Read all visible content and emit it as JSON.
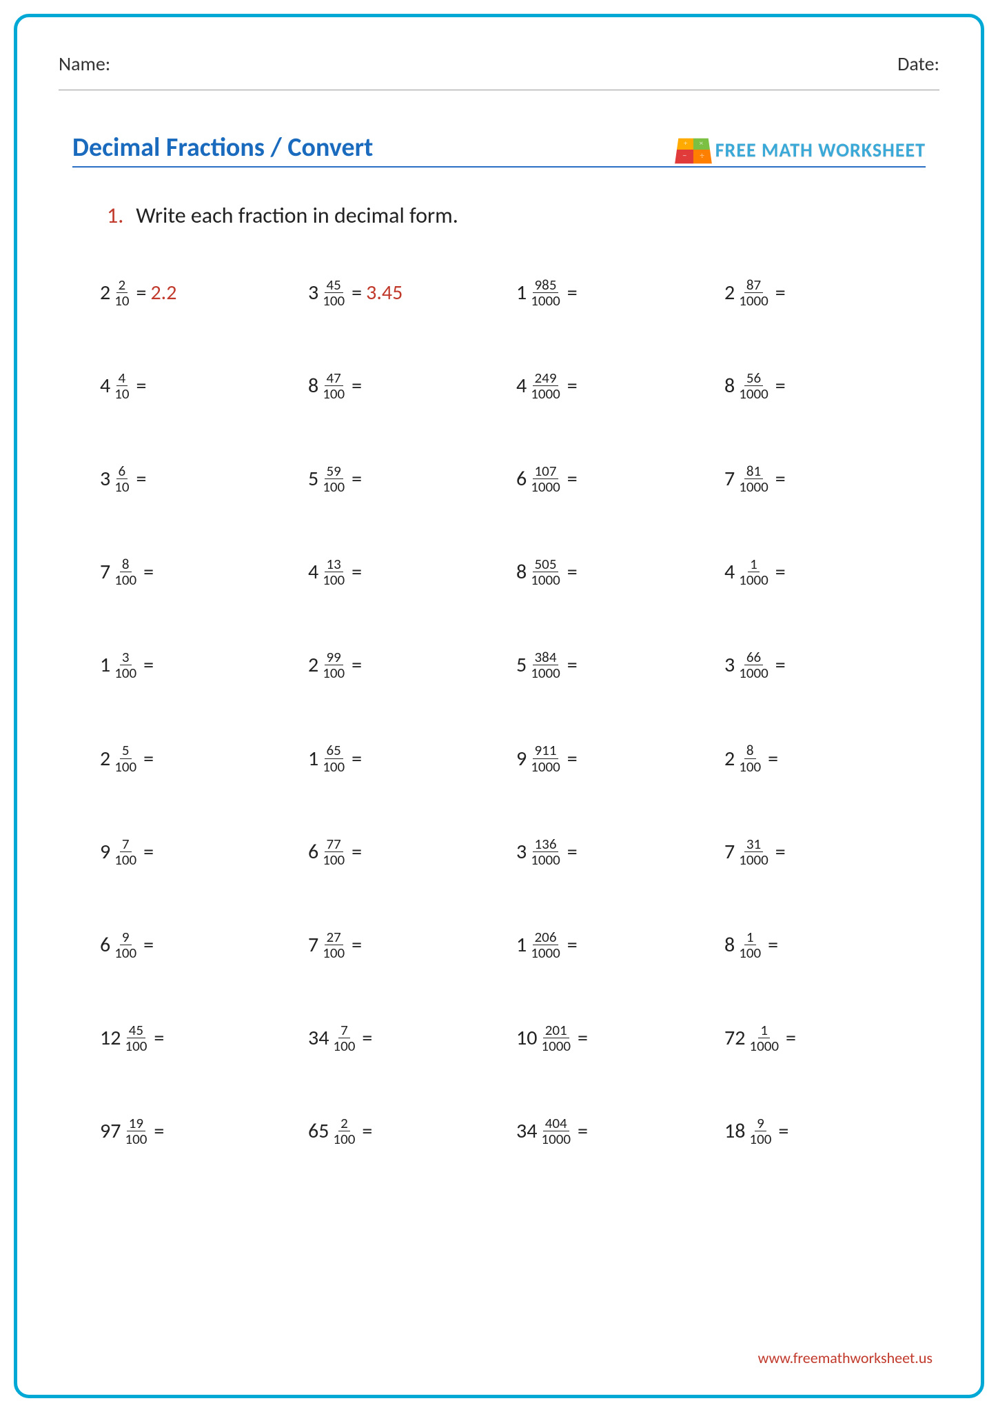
{
  "header": {
    "name_label": "Name:",
    "date_label": "Date:"
  },
  "title": "Decimal Fractions / Convert",
  "brand_text": "FREE MATH WORKSHEET",
  "instruction_number": "1.",
  "instruction_text": "Write each fraction in decimal form.",
  "footer_url": "www.freemathworksheet.us",
  "answer_color": "#c0392b",
  "title_color": "#1a6bbd",
  "border_color": "#00a8d6",
  "problems": [
    {
      "whole": "2",
      "num": "2",
      "den": "10",
      "answer": "2.2"
    },
    {
      "whole": "3",
      "num": "45",
      "den": "100",
      "answer": "3.45"
    },
    {
      "whole": "1",
      "num": "985",
      "den": "1000",
      "answer": ""
    },
    {
      "whole": "2",
      "num": "87",
      "den": "1000",
      "answer": ""
    },
    {
      "whole": "4",
      "num": "4",
      "den": "10",
      "answer": ""
    },
    {
      "whole": "8",
      "num": "47",
      "den": "100",
      "answer": ""
    },
    {
      "whole": "4",
      "num": "249",
      "den": "1000",
      "answer": ""
    },
    {
      "whole": "8",
      "num": "56",
      "den": "1000",
      "answer": ""
    },
    {
      "whole": "3",
      "num": "6",
      "den": "10",
      "answer": ""
    },
    {
      "whole": "5",
      "num": "59",
      "den": "100",
      "answer": ""
    },
    {
      "whole": "6",
      "num": "107",
      "den": "1000",
      "answer": ""
    },
    {
      "whole": "7",
      "num": "81",
      "den": "1000",
      "answer": ""
    },
    {
      "whole": "7",
      "num": "8",
      "den": "100",
      "answer": ""
    },
    {
      "whole": "4",
      "num": "13",
      "den": "100",
      "answer": ""
    },
    {
      "whole": "8",
      "num": "505",
      "den": "1000",
      "answer": ""
    },
    {
      "whole": "4",
      "num": "1",
      "den": "1000",
      "answer": ""
    },
    {
      "whole": "1",
      "num": "3",
      "den": "100",
      "answer": ""
    },
    {
      "whole": "2",
      "num": "99",
      "den": "100",
      "answer": ""
    },
    {
      "whole": "5",
      "num": "384",
      "den": "1000",
      "answer": ""
    },
    {
      "whole": "3",
      "num": "66",
      "den": "1000",
      "answer": ""
    },
    {
      "whole": "2",
      "num": "5",
      "den": "100",
      "answer": ""
    },
    {
      "whole": "1",
      "num": "65",
      "den": "100",
      "answer": ""
    },
    {
      "whole": "9",
      "num": "911",
      "den": "1000",
      "answer": ""
    },
    {
      "whole": "2",
      "num": "8",
      "den": "100",
      "answer": ""
    },
    {
      "whole": "9",
      "num": "7",
      "den": "100",
      "answer": ""
    },
    {
      "whole": "6",
      "num": "77",
      "den": "100",
      "answer": ""
    },
    {
      "whole": "3",
      "num": "136",
      "den": "1000",
      "answer": ""
    },
    {
      "whole": "7",
      "num": "31",
      "den": "1000",
      "answer": ""
    },
    {
      "whole": "6",
      "num": "9",
      "den": "100",
      "answer": ""
    },
    {
      "whole": "7",
      "num": "27",
      "den": "100",
      "answer": ""
    },
    {
      "whole": "1",
      "num": "206",
      "den": "1000",
      "answer": ""
    },
    {
      "whole": "8",
      "num": "1",
      "den": "100",
      "answer": ""
    },
    {
      "whole": "12",
      "num": "45",
      "den": "100",
      "answer": ""
    },
    {
      "whole": "34",
      "num": "7",
      "den": "100",
      "answer": ""
    },
    {
      "whole": "10",
      "num": "201",
      "den": "1000",
      "answer": ""
    },
    {
      "whole": "72",
      "num": "1",
      "den": "1000",
      "answer": ""
    },
    {
      "whole": "97",
      "num": "19",
      "den": "100",
      "answer": ""
    },
    {
      "whole": "65",
      "num": "2",
      "den": "100",
      "answer": ""
    },
    {
      "whole": "34",
      "num": "404",
      "den": "1000",
      "answer": ""
    },
    {
      "whole": "18",
      "num": "9",
      "den": "100",
      "answer": ""
    }
  ]
}
